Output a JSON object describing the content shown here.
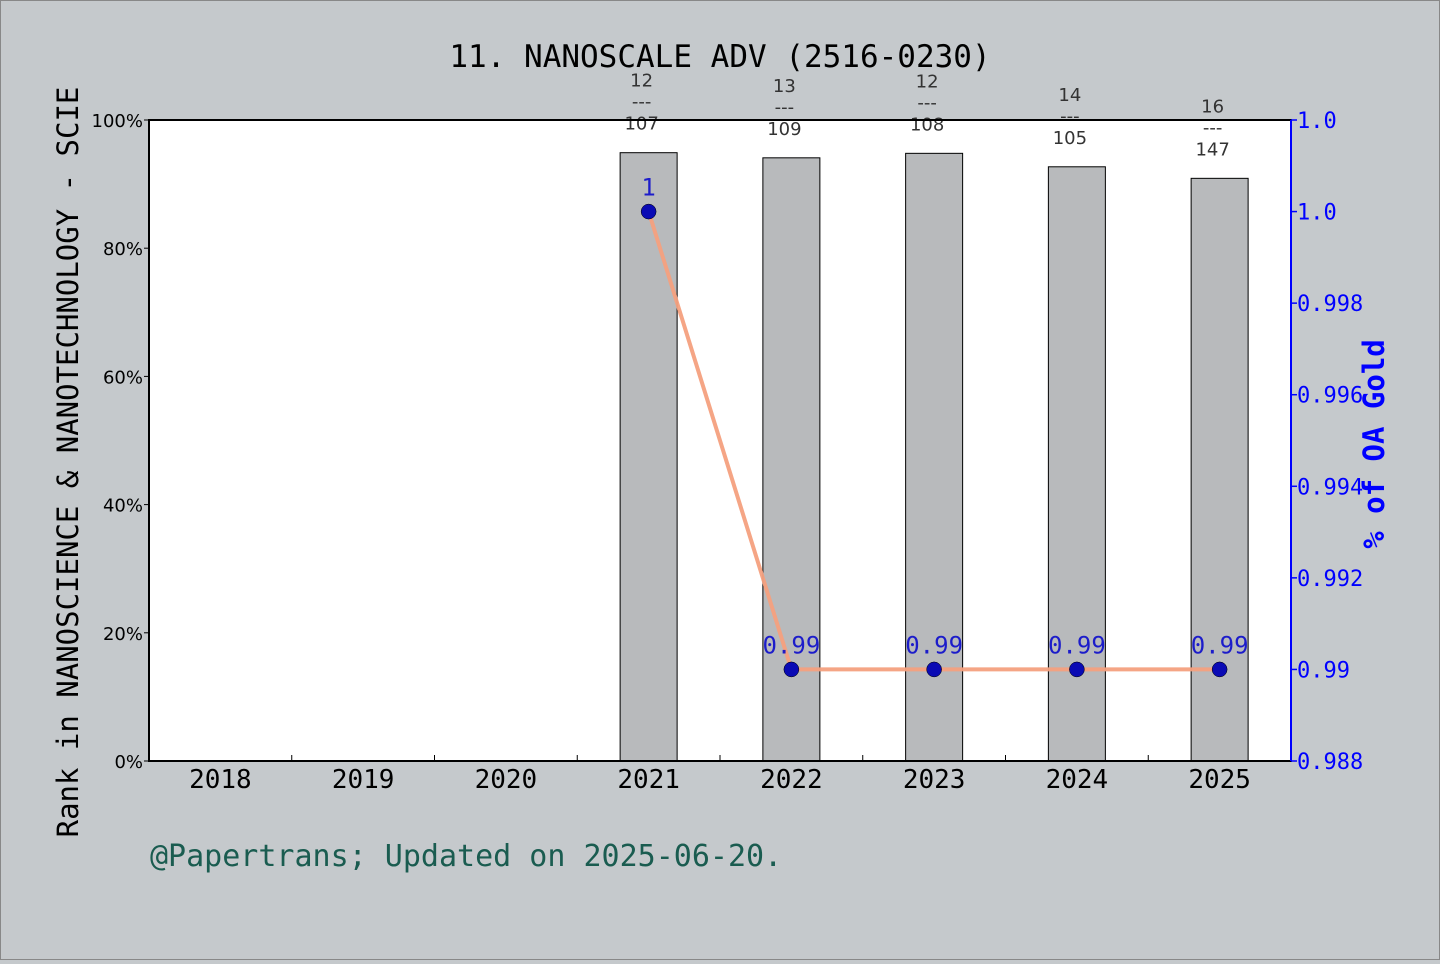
{
  "chart_data": {
    "type": "bar",
    "title": "11. NANOSCALE ADV (2516-0230)",
    "ylabel": "Rank in NANOSCIENCE & NANOTECHNOLOGY - SCIE",
    "y2label": "% of OA Gold",
    "footer": "@Papertrans; Updated on 2025-06-20.",
    "categories": [
      "2018",
      "2019",
      "2020",
      "2021",
      "2022",
      "2023",
      "2024",
      "2025"
    ],
    "ylim": [
      0,
      100
    ],
    "y_ticks": [
      "0%",
      "20%",
      "40%",
      "60%",
      "80%",
      "100%"
    ],
    "y2lim": [
      0.988,
      1.002
    ],
    "y2_ticks": [
      {
        "value": 0.988,
        "label": "0.988"
      },
      {
        "value": 0.99,
        "label": "0.99"
      },
      {
        "value": 0.992,
        "label": "0.992"
      },
      {
        "value": 0.994,
        "label": "0.994"
      },
      {
        "value": 0.996,
        "label": "0.996"
      },
      {
        "value": 0.998,
        "label": "0.998"
      },
      {
        "value": 1.0,
        "label": "1.0"
      },
      {
        "value": 1.002,
        "label": "1.0"
      }
    ],
    "bars": {
      "values": [
        null,
        null,
        null,
        94.9,
        94.1,
        94.8,
        92.7,
        90.9
      ],
      "rank_labels": [
        null,
        null,
        null,
        {
          "rank": "12",
          "sep": "---",
          "total": "107"
        },
        {
          "rank": "13",
          "sep": "---",
          "total": "109"
        },
        {
          "rank": "12",
          "sep": "---",
          "total": "108"
        },
        {
          "rank": "14",
          "sep": "---",
          "total": "105"
        },
        {
          "rank": "16",
          "sep": "---",
          "total": "147"
        }
      ],
      "color": "#b8babc"
    },
    "series": [
      {
        "name": "% of OA Gold",
        "axis": "right",
        "values": [
          null,
          null,
          null,
          1.0,
          0.99,
          0.99,
          0.99,
          0.99
        ],
        "labels": [
          null,
          null,
          null,
          "1",
          "0.99",
          "0.99",
          "0.99",
          "0.99"
        ],
        "line_color": "#f4a07e",
        "marker_color": "#0a0ab4"
      }
    ],
    "colors": {
      "left_axis": "#000000",
      "right_axis": "#0000ff",
      "footer": "#1a5c50",
      "background": "#c5c9cc",
      "plot_bg": "#ffffff"
    },
    "grid": false
  }
}
